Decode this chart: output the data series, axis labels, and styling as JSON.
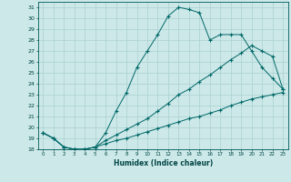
{
  "xlabel": "Humidex (Indice chaleur)",
  "bg_color": "#cce8e8",
  "line_color": "#006868",
  "grid_color": "#aad0d0",
  "xlim": [
    -0.5,
    23.5
  ],
  "ylim": [
    18,
    31.5
  ],
  "xticks": [
    0,
    1,
    2,
    3,
    4,
    5,
    6,
    7,
    8,
    9,
    10,
    11,
    12,
    13,
    14,
    15,
    16,
    17,
    18,
    19,
    20,
    21,
    22,
    23
  ],
  "yticks": [
    18,
    19,
    20,
    21,
    22,
    23,
    24,
    25,
    26,
    27,
    28,
    29,
    30,
    31
  ],
  "line1_x": [
    0,
    1,
    2,
    3,
    4,
    5,
    6,
    7,
    8,
    9,
    10,
    11,
    12,
    13,
    14,
    15,
    16,
    17,
    18,
    19,
    20,
    21,
    22,
    23
  ],
  "line1_y": [
    19.5,
    19.0,
    18.2,
    18.0,
    18.0,
    18.2,
    18.5,
    18.8,
    19.0,
    19.3,
    19.6,
    19.9,
    20.2,
    20.5,
    20.8,
    21.0,
    21.3,
    21.6,
    22.0,
    22.3,
    22.6,
    22.8,
    23.0,
    23.2
  ],
  "line2_x": [
    0,
    1,
    2,
    3,
    4,
    5,
    6,
    7,
    8,
    9,
    10,
    11,
    12,
    13,
    14,
    15,
    16,
    17,
    18,
    19,
    20,
    21,
    22,
    23
  ],
  "line2_y": [
    19.5,
    19.0,
    18.2,
    18.0,
    18.0,
    18.2,
    18.8,
    19.3,
    19.8,
    20.3,
    20.8,
    21.5,
    22.2,
    23.0,
    23.5,
    24.2,
    24.8,
    25.5,
    26.2,
    26.8,
    27.5,
    27.0,
    26.5,
    23.5
  ],
  "line3_x": [
    0,
    1,
    2,
    3,
    4,
    5,
    6,
    7,
    8,
    9,
    10,
    11,
    12,
    13,
    14,
    15,
    16,
    17,
    18,
    19,
    20,
    21,
    22,
    23
  ],
  "line3_y": [
    19.5,
    19.0,
    18.2,
    18.0,
    18.0,
    18.2,
    19.5,
    21.5,
    23.2,
    25.5,
    27.0,
    28.5,
    30.2,
    31.0,
    30.8,
    30.5,
    28.0,
    28.5,
    28.5,
    28.5,
    27.0,
    25.5,
    24.5,
    23.5
  ]
}
